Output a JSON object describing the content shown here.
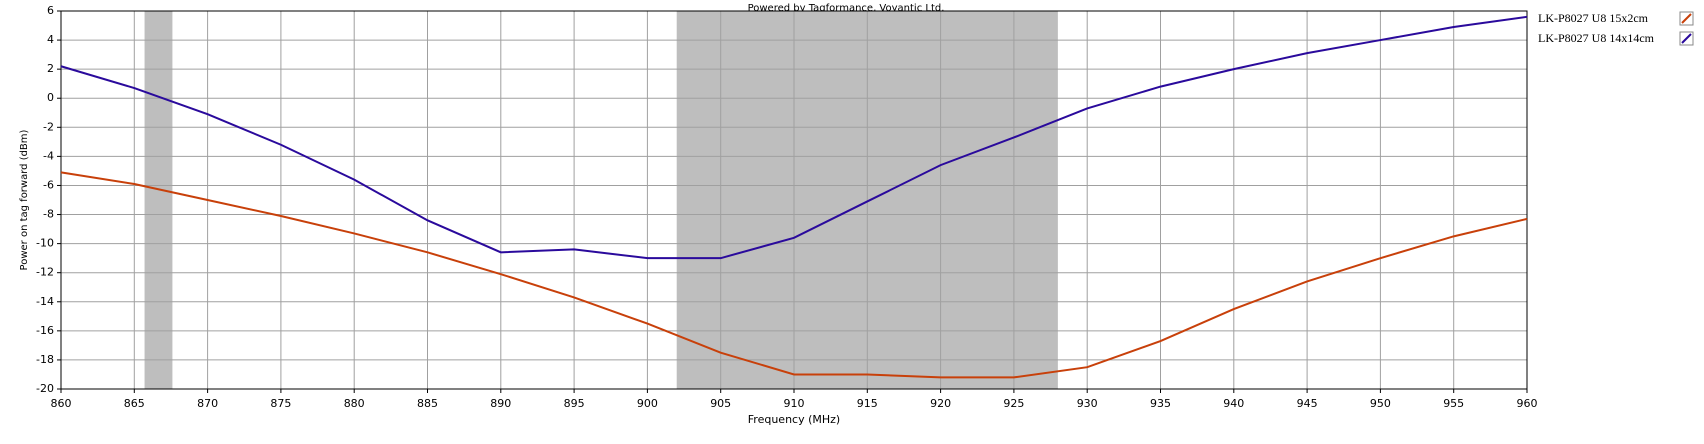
{
  "chart_data": {
    "type": "line",
    "title": "Powered by Tagformance, Voyantic Ltd.",
    "x_label": "Frequency (MHz)",
    "y_label": "Power on tag forward (dBm)",
    "x": [
      860,
      865,
      870,
      875,
      880,
      885,
      890,
      895,
      900,
      905,
      910,
      915,
      920,
      925,
      930,
      935,
      940,
      945,
      950,
      955,
      960
    ],
    "series": [
      {
        "name": "LK-P8027 U8 15x2cm",
        "color": "#c8400a",
        "values": [
          -5.1,
          -5.9,
          -7.0,
          -8.1,
          -9.3,
          -10.6,
          -12.1,
          -13.7,
          -15.5,
          -17.5,
          -19.0,
          -19.0,
          -19.2,
          -19.2,
          -18.5,
          -16.7,
          -14.5,
          -12.6,
          -11.0,
          -9.5,
          -8.3
        ]
      },
      {
        "name": "LK-P8027 U8 14x14cm",
        "color": "#2a0a9c",
        "values": [
          2.2,
          0.7,
          -1.1,
          -3.2,
          -5.6,
          -8.4,
          -10.6,
          -10.4,
          -11.0,
          -11.0,
          -9.6,
          -7.1,
          -4.6,
          -2.7,
          -0.7,
          0.8,
          2.0,
          3.1,
          4.0,
          4.9,
          5.6
        ]
      }
    ],
    "shaded_regions": [
      [
        865.7,
        867.6
      ],
      [
        902,
        928
      ]
    ],
    "shade_color": "#bebebe",
    "xlim": [
      860,
      960
    ],
    "xticks": [
      860,
      865,
      870,
      875,
      880,
      885,
      890,
      895,
      900,
      905,
      910,
      915,
      920,
      925,
      930,
      935,
      940,
      945,
      950,
      955,
      960
    ],
    "ylim": [
      -20,
      6
    ],
    "yticks": [
      -20,
      -18,
      -16,
      -14,
      -12,
      -10,
      -8,
      -6,
      -4,
      -2,
      0,
      2,
      4,
      6
    ],
    "grid": true,
    "legend": "right"
  }
}
